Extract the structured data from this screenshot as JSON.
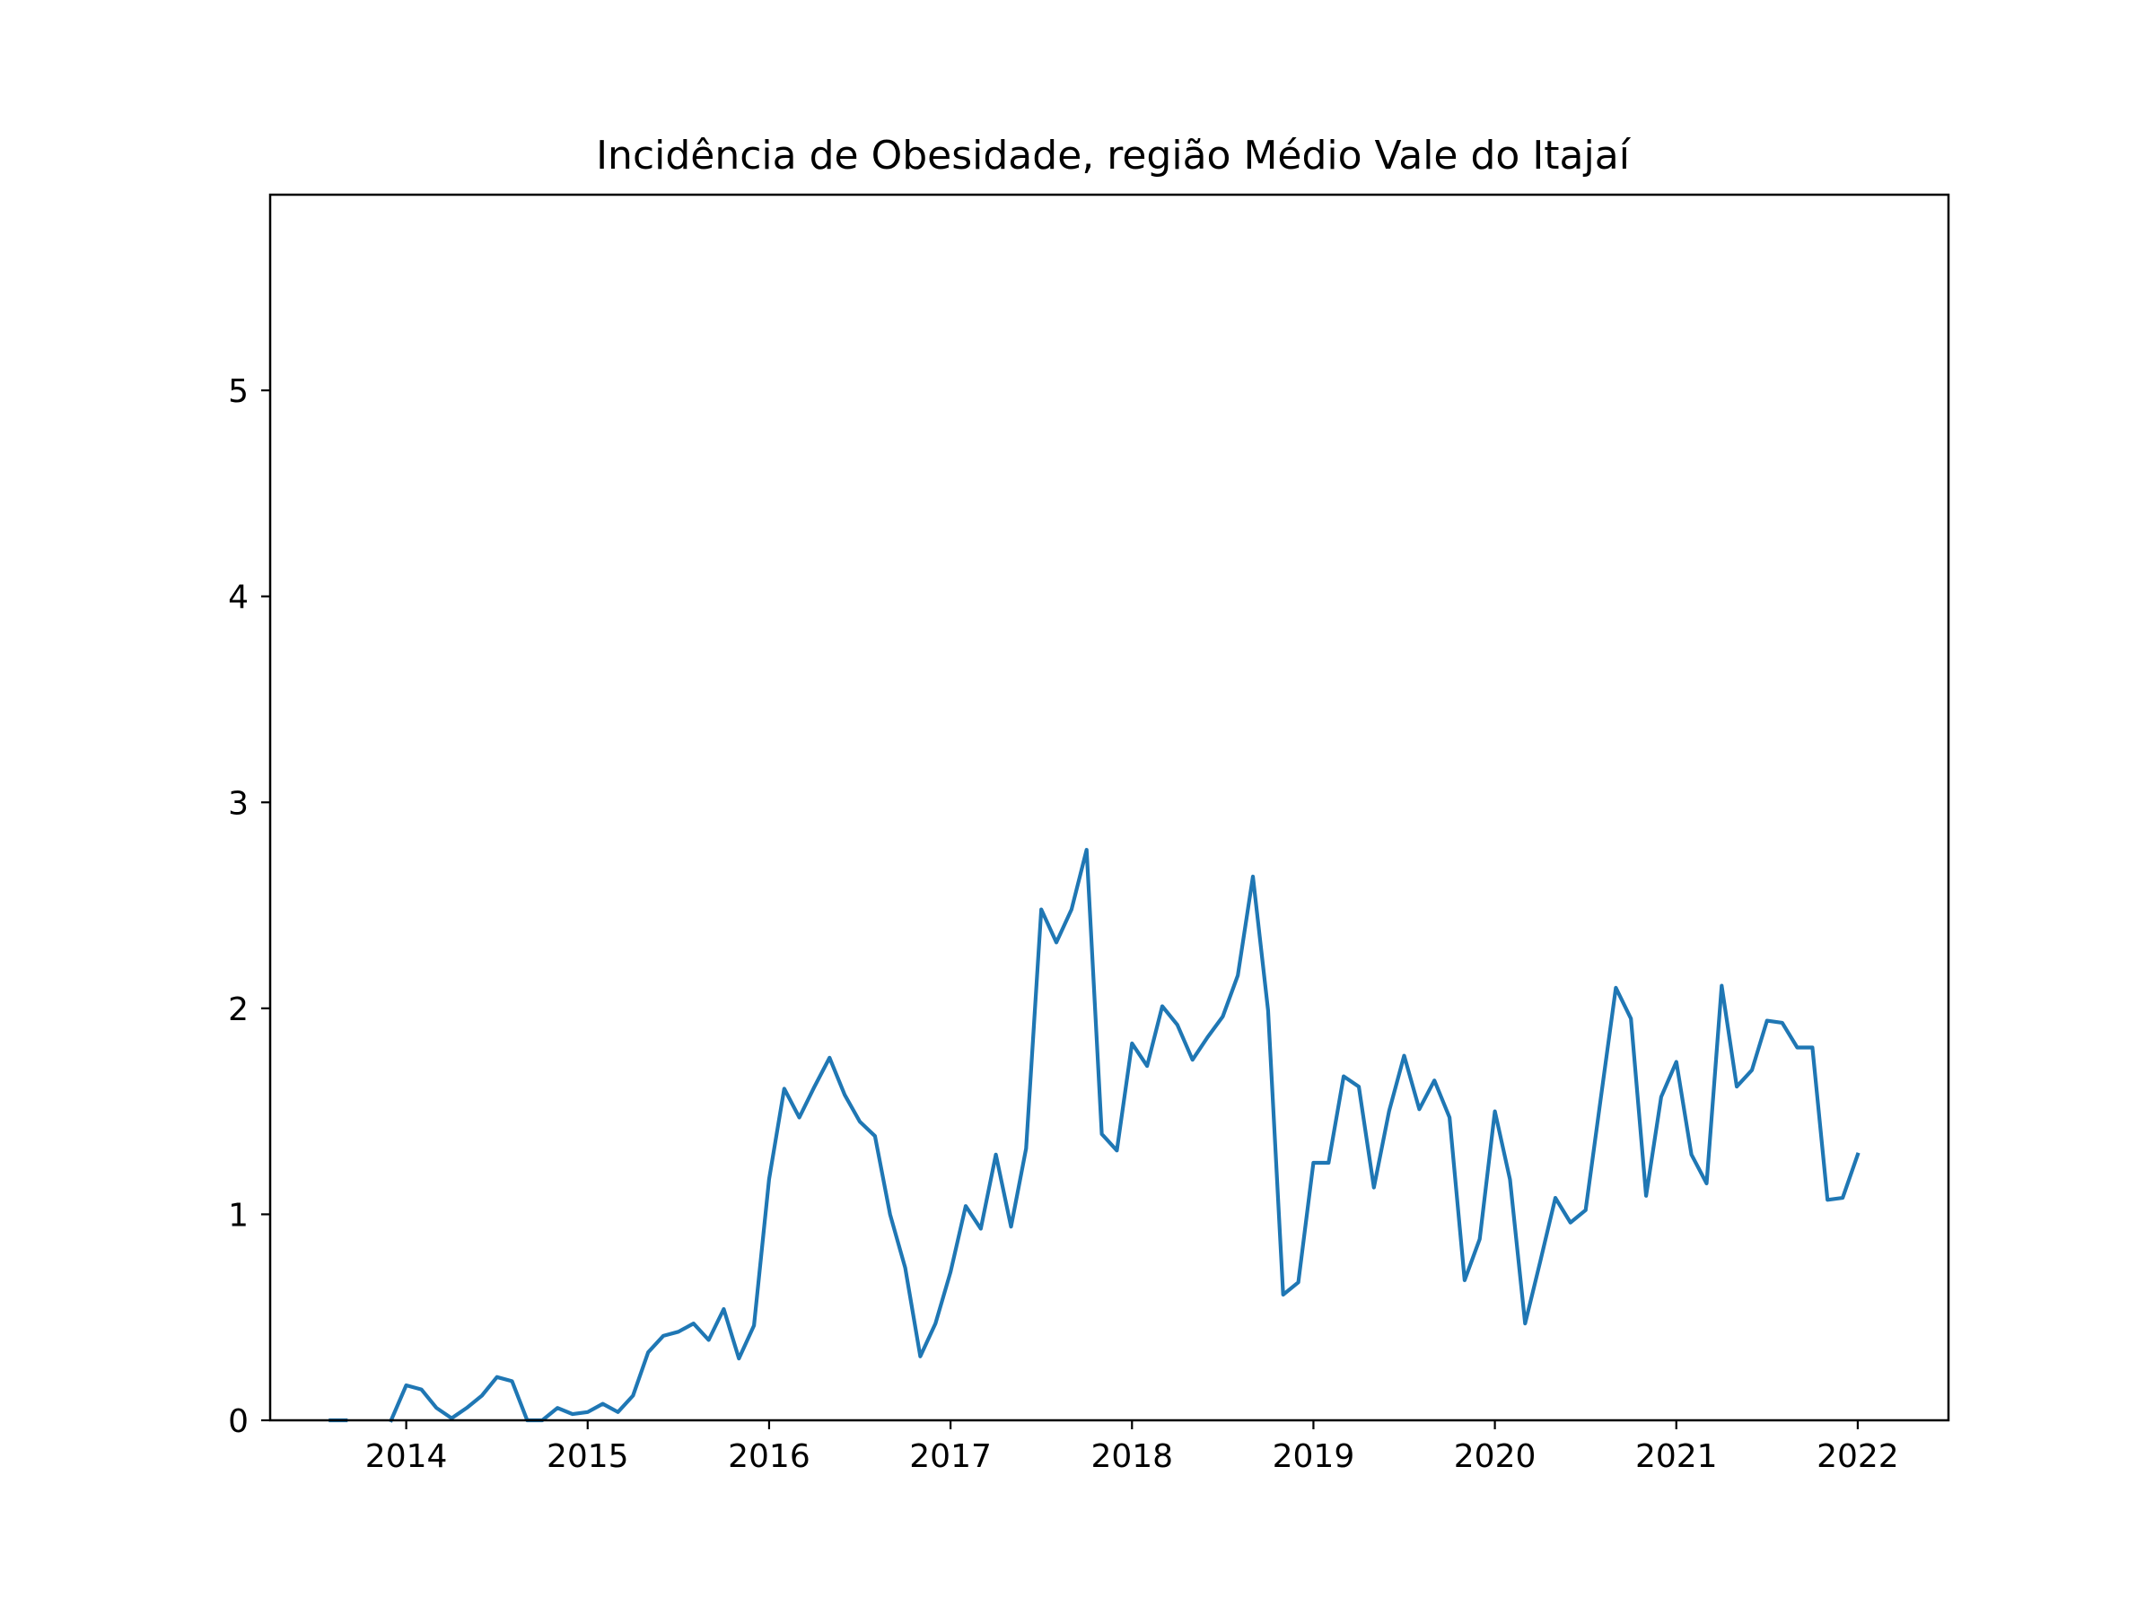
{
  "chart_data": {
    "type": "line",
    "title": "Incidência de Obesidade, região Médio Vale do Itajaí",
    "xlabel": "",
    "ylabel": "",
    "x_start": "2013-08",
    "x_interval": "month",
    "xlim": [
      "2013-04",
      "2022-07"
    ],
    "ylim": [
      0,
      5.95
    ],
    "xticks": [
      "2014",
      "2015",
      "2016",
      "2017",
      "2018",
      "2019",
      "2020",
      "2021",
      "2022"
    ],
    "yticks": [
      "0",
      "1",
      "2",
      "3",
      "4",
      "5"
    ],
    "grid": false,
    "legend": "none",
    "series": [
      {
        "color": "#1f77b4",
        "values": [
          0,
          0,
          null,
          null,
          0,
          0.17,
          0.15,
          0.06,
          0.01,
          0.06,
          0.12,
          0.21,
          0.19,
          0,
          0,
          0.06,
          0.03,
          0.04,
          0.08,
          0.04,
          0.12,
          0.33,
          0.41,
          0.43,
          0.47,
          0.39,
          0.54,
          0.3,
          0.46,
          1.17,
          1.61,
          1.47,
          1.62,
          1.76,
          1.58,
          1.45,
          1.38,
          1.0,
          0.74,
          0.31,
          0.47,
          0.72,
          1.04,
          0.93,
          1.29,
          0.94,
          1.32,
          2.48,
          2.32,
          2.48,
          2.77,
          1.39,
          1.31,
          1.83,
          1.72,
          2.01,
          1.92,
          1.75,
          1.86,
          1.96,
          2.16,
          2.64,
          1.99,
          0.61,
          0.67,
          1.25,
          1.25,
          1.67,
          1.62,
          1.13,
          1.5,
          1.77,
          1.51,
          1.65,
          1.47,
          0.68,
          0.88,
          1.5,
          1.17,
          0.47,
          0.77,
          1.08,
          0.96,
          1.02,
          1.56,
          2.1,
          1.95,
          1.09,
          1.57,
          1.74,
          1.29,
          1.15,
          2.11,
          1.62,
          1.7,
          1.94,
          1.93,
          1.81,
          1.81,
          1.07,
          1.08,
          1.29
        ]
      }
    ]
  }
}
